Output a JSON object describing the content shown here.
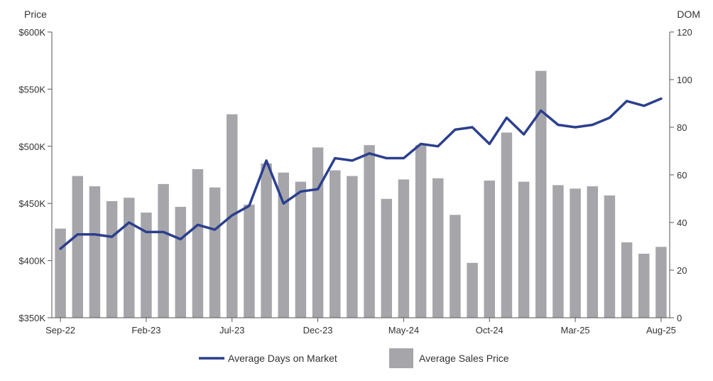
{
  "chart_data": {
    "type": "bar",
    "title": "",
    "y_left_label": "Price",
    "y_right_label": "DOM",
    "y_left_ticks": [
      "$350K",
      "$400K",
      "$450K",
      "$500K",
      "$550K",
      "$600K"
    ],
    "y_left_range": [
      350000,
      600000
    ],
    "y_right_ticks": [
      "0",
      "20",
      "40",
      "60",
      "80",
      "100",
      "120"
    ],
    "y_right_range": [
      0,
      120
    ],
    "x_tick_labels": [
      "Sep-22",
      "Feb-23",
      "Jul-23",
      "Dec-23",
      "May-24",
      "Oct-24",
      "Mar-25",
      "Aug-25"
    ],
    "categories": [
      "Sep-22",
      "Oct-22",
      "Nov-22",
      "Dec-22",
      "Jan-23",
      "Feb-23",
      "Mar-23",
      "Apr-23",
      "May-23",
      "Jun-23",
      "Jul-23",
      "Aug-23",
      "Sep-23",
      "Oct-23",
      "Nov-23",
      "Dec-23",
      "Jan-24",
      "Feb-24",
      "Mar-24",
      "Apr-24",
      "May-24",
      "Jun-24",
      "Jul-24",
      "Aug-24",
      "Sep-24",
      "Oct-24",
      "Nov-24",
      "Dec-24",
      "Jan-25",
      "Feb-25",
      "Mar-25",
      "Apr-25",
      "May-25",
      "Jun-25",
      "Jul-25",
      "Aug-25"
    ],
    "series": [
      {
        "name": "Average Sales Price",
        "kind": "bar",
        "axis": "left",
        "color": "#a6a6aa",
        "values": [
          428000,
          474000,
          465000,
          452000,
          455000,
          442000,
          467000,
          447000,
          480000,
          464000,
          528000,
          449000,
          485000,
          477000,
          469000,
          499000,
          479000,
          474000,
          501000,
          454000,
          471000,
          501000,
          472000,
          440000,
          398000,
          470000,
          512000,
          469000,
          566000,
          466000,
          463000,
          465000,
          457000,
          416000,
          406000,
          412000
        ]
      },
      {
        "name": "Average Days on Market",
        "kind": "line",
        "axis": "right",
        "color": "#2b3f8f",
        "values": [
          29,
          35,
          35,
          34,
          40,
          36,
          36,
          33,
          39,
          37,
          43,
          47,
          66,
          48,
          53,
          54,
          67,
          66,
          69,
          67,
          67,
          73,
          72,
          79,
          80,
          73,
          84,
          77,
          87,
          81,
          80,
          81,
          84,
          91,
          89,
          92
        ]
      }
    ],
    "legend": {
      "position": "bottom",
      "items": [
        {
          "label": "Average Days on Market",
          "swatch": "line",
          "color": "#2b3f8f"
        },
        {
          "label": "Average Sales Price",
          "swatch": "box",
          "color": "#a6a6aa"
        }
      ]
    },
    "grid": false
  }
}
